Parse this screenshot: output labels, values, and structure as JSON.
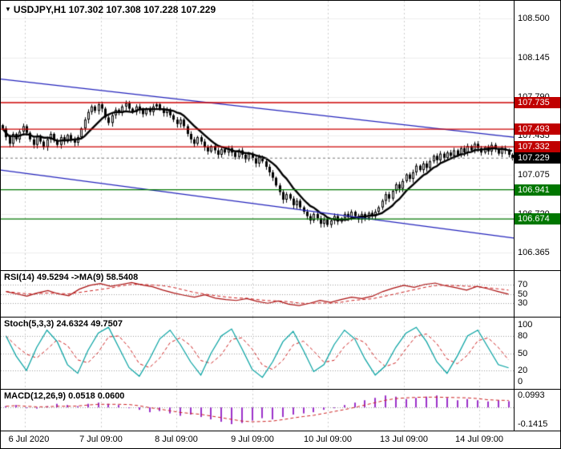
{
  "header": {
    "symbol": "USDJPY,H1",
    "ohlc_text": "107.302 107.308 107.228 107.229"
  },
  "indicators": {
    "rsi": {
      "header": "RSI(14) 49.5294  ->MA(9) 58.5408"
    },
    "stoch": {
      "header": "Stoch(5,3,3) 24.6324 49.7507"
    },
    "macd": {
      "header": "MACD(12,26,9) 0.0518 0.0600"
    }
  },
  "time_axis": {
    "labels": [
      "6 Jul 2020",
      "7 Jul 09:00",
      "8 Jul 09:00",
      "9 Jul 09:00",
      "10 Jul 09:00",
      "13 Jul 09:00",
      "14 Jul 09:00"
    ]
  },
  "colors": {
    "grid": "#cccccc",
    "hgrid": "#ececec",
    "candle": "#000000",
    "ma": "#000000",
    "resistance": "#cc0000",
    "resistance_label_bg": "#c00000",
    "support": "#007700",
    "support_label_bg": "#007700",
    "current_line": "#777777",
    "current_label_bg": "#000000",
    "trend": "#2222bb",
    "rsi": "#aa1111",
    "rsi_ma": "#cc2222",
    "stoch_main": "#00a0a0",
    "stoch_signal": "#cc2222",
    "macd_hist": "#9b30c9",
    "macd_signal": "#cc2222",
    "label_fg": "#ffffff"
  },
  "chart_data": [
    {
      "type": "candlestick",
      "name": "USDJPY,H1",
      "ylim": [
        106.28,
        108.62
      ],
      "y_ticks": [
        "108.500",
        "108.145",
        "107.790",
        "107.435",
        "107.075",
        "106.720",
        "106.365"
      ],
      "levels": [
        {
          "price": 107.735,
          "label": "107.735",
          "type": "resistance"
        },
        {
          "price": 107.493,
          "label": "107.493",
          "type": "resistance"
        },
        {
          "price": 107.332,
          "label": "107.332",
          "type": "resistance"
        },
        {
          "price": 107.229,
          "label": "107.229",
          "type": "current"
        },
        {
          "price": 106.941,
          "label": "106.941",
          "type": "support"
        },
        {
          "price": 106.674,
          "label": "106.674",
          "type": "support"
        }
      ],
      "trendlines": [
        {
          "p1": 107.95,
          "p2": 107.42
        },
        {
          "p1": 107.12,
          "p2": 106.5
        }
      ],
      "closes": [
        107.5,
        107.42,
        107.36,
        107.45,
        107.4,
        107.47,
        107.52,
        107.46,
        107.4,
        107.35,
        107.43,
        107.38,
        107.33,
        107.4,
        107.45,
        107.39,
        107.35,
        107.42,
        107.38,
        107.44,
        107.4,
        107.37,
        107.42,
        107.5,
        107.58,
        107.65,
        107.7,
        107.66,
        107.72,
        107.68,
        107.6,
        107.55,
        107.62,
        107.67,
        107.64,
        107.7,
        107.73,
        107.68,
        107.65,
        107.7,
        107.67,
        107.63,
        107.68,
        107.65,
        107.7,
        107.72,
        107.68,
        107.64,
        107.67,
        107.62,
        107.58,
        107.54,
        107.58,
        107.52,
        107.45,
        107.4,
        107.36,
        107.42,
        107.38,
        107.33,
        107.29,
        107.34,
        107.3,
        107.26,
        107.31,
        107.28,
        107.32,
        107.28,
        107.24,
        107.3,
        107.26,
        107.22,
        107.27,
        107.23,
        107.18,
        107.24,
        107.2,
        107.15,
        107.1,
        107.05,
        106.98,
        106.92,
        106.85,
        106.9,
        106.86,
        106.8,
        106.84,
        106.78,
        106.74,
        106.7,
        106.66,
        106.72,
        106.68,
        106.63,
        106.67,
        106.62,
        106.66,
        106.7,
        106.65,
        106.68,
        106.72,
        106.69,
        106.74,
        106.7,
        106.67,
        106.72,
        106.68,
        106.73,
        106.7,
        106.74,
        106.78,
        106.84,
        106.9,
        106.86,
        106.93,
        106.99,
        106.95,
        107.02,
        107.08,
        107.04,
        107.1,
        107.16,
        107.12,
        107.18,
        107.14,
        107.2,
        107.25,
        107.21,
        107.27,
        107.23,
        107.28,
        107.25,
        107.3,
        107.26,
        107.32,
        107.28,
        107.34,
        107.3,
        107.36,
        107.32,
        107.28,
        107.33,
        107.29,
        107.35,
        107.31,
        107.27,
        107.32,
        107.3,
        107.26,
        107.229
      ]
    },
    {
      "type": "line",
      "name": "RSI(14)",
      "current": 49.5294,
      "ma_current": 58.5408,
      "ylim": [
        10,
        90
      ],
      "levels": [
        70,
        50,
        30
      ],
      "y_ticks": [
        "70",
        "50",
        "30"
      ],
      "values": [
        55,
        50,
        45,
        52,
        57,
        50,
        46,
        60,
        68,
        72,
        66,
        70,
        74,
        69,
        65,
        58,
        52,
        47,
        43,
        48,
        41,
        38,
        36,
        40,
        34,
        30,
        35,
        28,
        25,
        30,
        36,
        32,
        38,
        43,
        40,
        45,
        55,
        62,
        68,
        64,
        70,
        73,
        67,
        63,
        58,
        66,
        61,
        55,
        49.5
      ]
    },
    {
      "type": "line",
      "name": "Stoch(5,3,3)",
      "current_main": 24.6324,
      "current_signal": 49.7507,
      "ylim": [
        -5,
        105
      ],
      "levels": [
        80,
        50,
        20
      ],
      "y_ticks": [
        "100",
        "80",
        "50",
        "20",
        "0"
      ],
      "values": [
        80,
        45,
        20,
        60,
        90,
        70,
        30,
        15,
        55,
        85,
        95,
        60,
        25,
        10,
        40,
        75,
        90,
        65,
        35,
        12,
        50,
        80,
        92,
        58,
        22,
        8,
        35,
        70,
        88,
        55,
        18,
        30,
        65,
        90,
        75,
        40,
        12,
        28,
        60,
        85,
        95,
        70,
        35,
        15,
        45,
        80,
        90,
        60,
        30,
        24.6
      ]
    },
    {
      "type": "bar",
      "name": "MACD(12,26,9)",
      "current_hist": 0.0518,
      "current_signal": 0.06,
      "ylim": [
        -0.16,
        0.115
      ],
      "y_ticks": [
        "0.0993",
        "-0.1415"
      ],
      "values": [
        0.01,
        0.02,
        0.0,
        -0.01,
        0.01,
        0.03,
        0.02,
        0.01,
        0.03,
        0.04,
        0.03,
        0.02,
        0.0,
        -0.02,
        -0.04,
        -0.03,
        -0.05,
        -0.07,
        -0.06,
        -0.08,
        -0.1,
        -0.12,
        -0.14,
        -0.13,
        -0.11,
        -0.09,
        -0.1,
        -0.08,
        -0.06,
        -0.05,
        -0.04,
        -0.02,
        0.0,
        0.02,
        0.04,
        0.06,
        0.08,
        0.1,
        0.09,
        0.07,
        0.08,
        0.09,
        0.1,
        0.08,
        0.06,
        0.07,
        0.06,
        0.05,
        0.06,
        0.0518
      ]
    }
  ]
}
